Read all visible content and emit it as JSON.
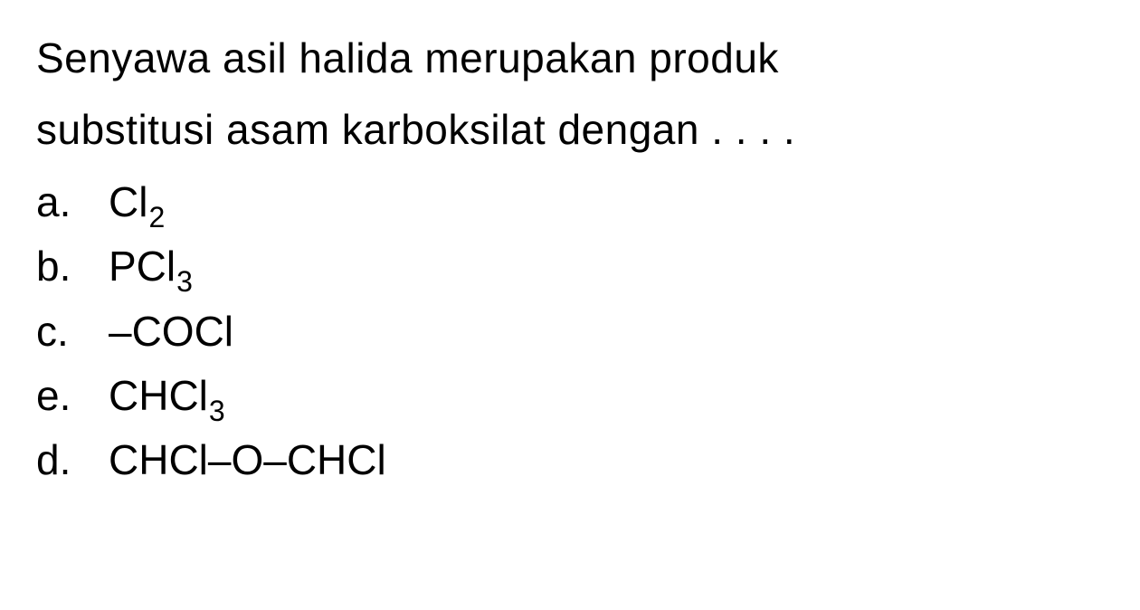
{
  "question": {
    "line1": "Senyawa asil halida merupakan produk",
    "line2": "substitusi asam karboksilat dengan . . . ."
  },
  "options": {
    "a": {
      "letter": "a.",
      "prefix": "Cl",
      "sub": "2",
      "suffix": ""
    },
    "b": {
      "letter": "b.",
      "prefix": "PCl",
      "sub": "3",
      "suffix": ""
    },
    "c": {
      "letter": "c.",
      "prefix": "–COCl",
      "sub": "",
      "suffix": ""
    },
    "e": {
      "letter": "e.",
      "prefix": "CHCl",
      "sub": "3",
      "suffix": ""
    },
    "d": {
      "letter": "d.",
      "prefix": "CHCl–O–CHCl",
      "sub": "",
      "suffix": ""
    }
  },
  "style": {
    "background_color": "#ffffff",
    "text_color": "#000000",
    "font_size_main": 46,
    "font_size_sub": 32,
    "font_family": "Arial, Helvetica, sans-serif"
  }
}
